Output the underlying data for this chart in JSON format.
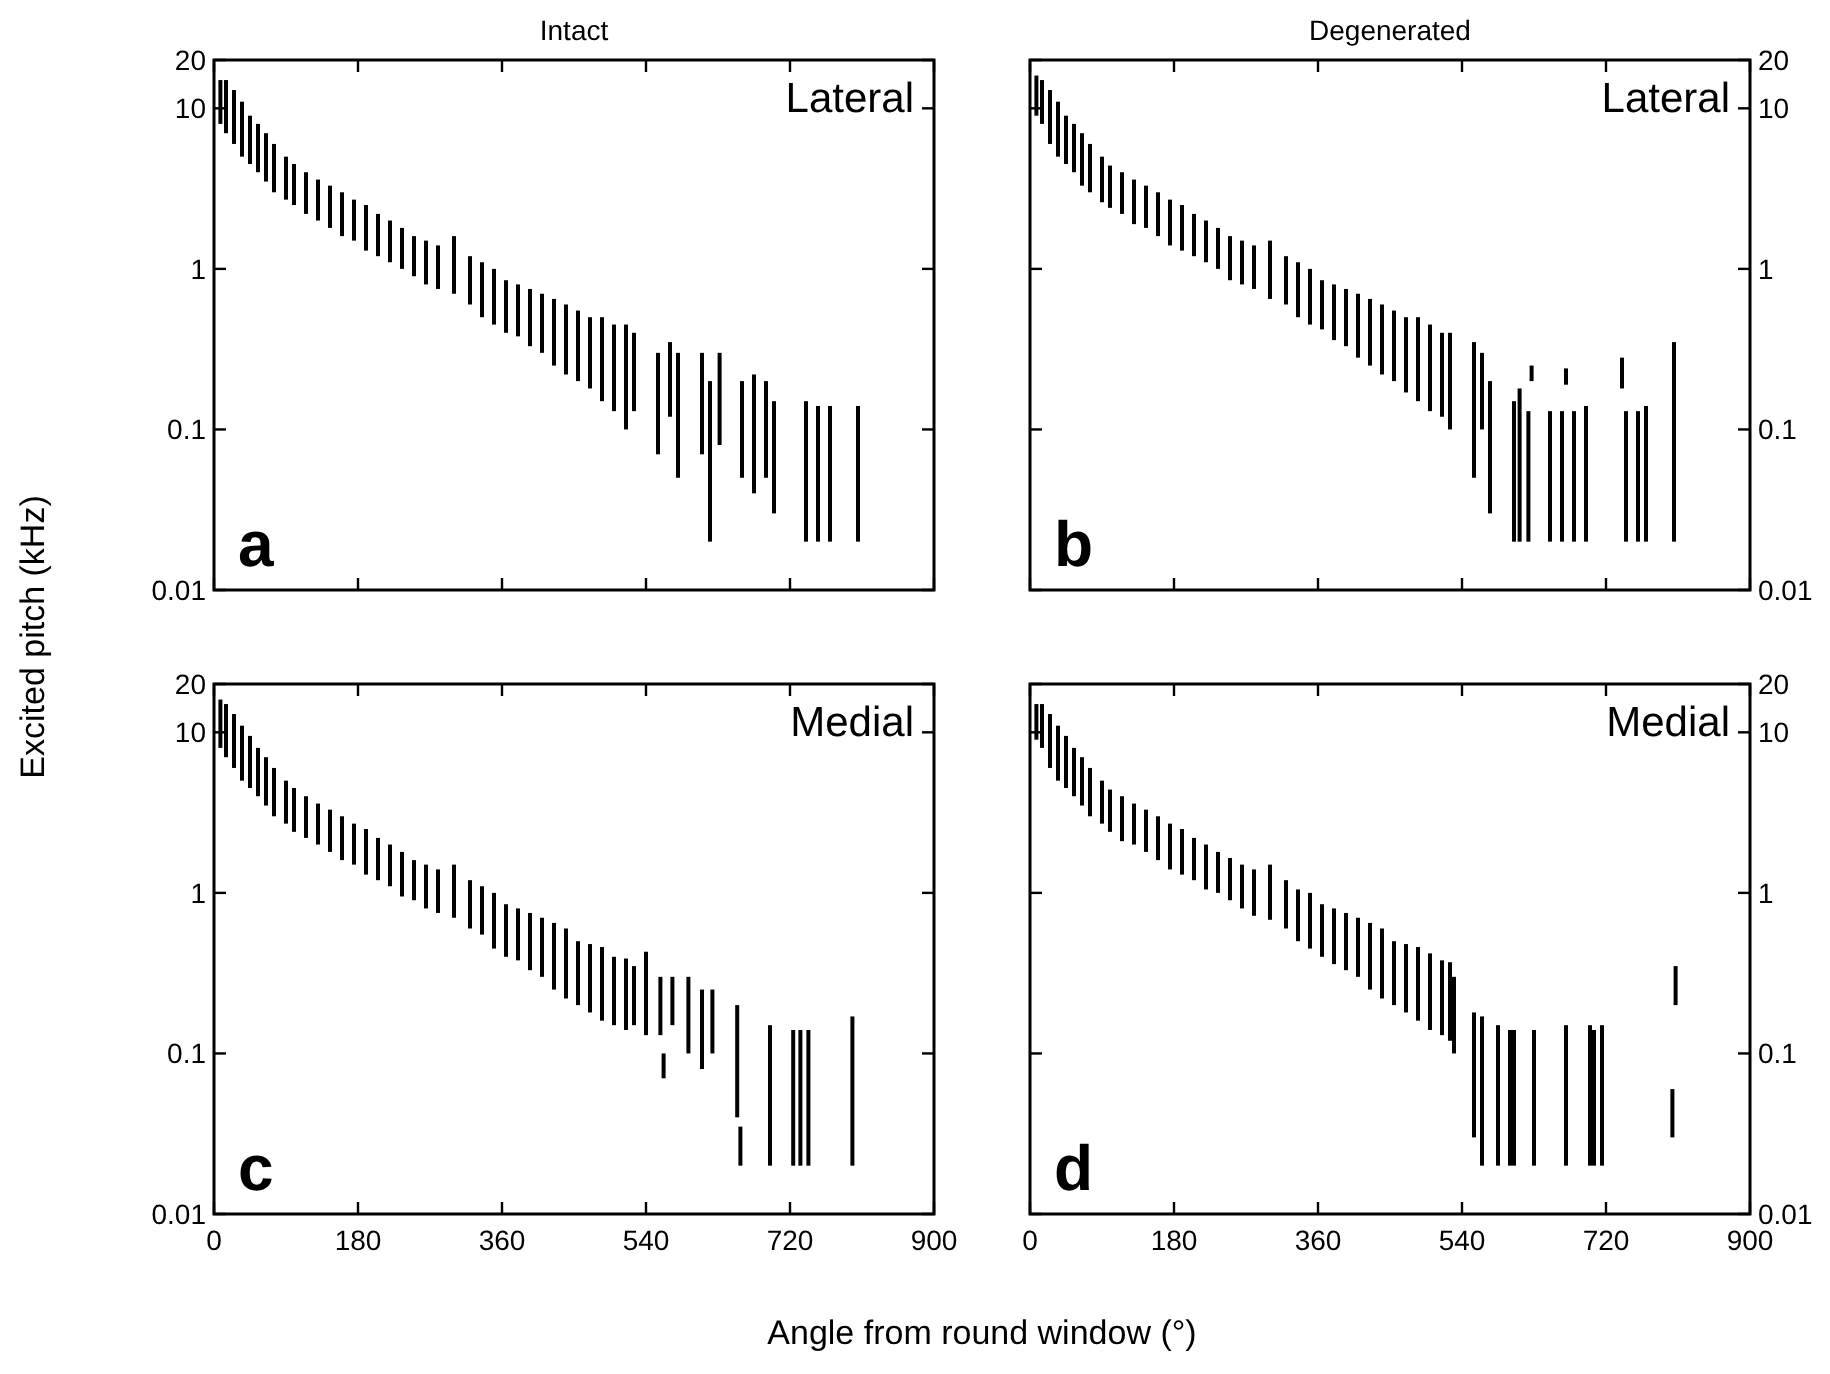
{
  "chart_data": [
    {
      "type": "bar",
      "title": "Intact",
      "ylabel": "Excited pitch (kHz)",
      "annotations": [
        "Lateral",
        "a"
      ],
      "log": "y",
      "tick_labels": "y",
      "xlim": [
        0,
        900
      ],
      "xticks": [
        0,
        180,
        360,
        540,
        720,
        900
      ],
      "ylim": [
        0.01,
        20
      ],
      "yticks": [
        0.01,
        0.1,
        1,
        10,
        20
      ],
      "x": [
        8,
        15,
        25,
        35,
        45,
        55,
        65,
        75,
        90,
        100,
        115,
        130,
        145,
        160,
        175,
        190,
        205,
        220,
        235,
        250,
        265,
        280,
        300,
        320,
        335,
        350,
        365,
        380,
        395,
        410,
        425,
        440,
        455,
        470,
        485,
        500,
        515,
        525,
        555,
        570,
        580,
        610,
        620,
        632,
        660,
        675,
        690,
        700,
        740,
        755,
        770,
        805
      ],
      "series": [
        {
          "color": "#000000",
          "base": [
            8,
            7,
            6,
            5,
            4.5,
            4,
            3.5,
            3,
            2.7,
            2.5,
            2.2,
            2,
            1.8,
            1.6,
            1.5,
            1.3,
            1.2,
            1.1,
            1,
            0.9,
            0.8,
            0.75,
            0.7,
            0.6,
            0.5,
            0.45,
            0.4,
            0.38,
            0.33,
            0.3,
            0.25,
            0.22,
            0.2,
            0.18,
            0.15,
            0.13,
            0.1,
            0.13,
            0.07,
            0.12,
            0.05,
            0.07,
            0.02,
            0.08,
            0.05,
            0.04,
            0.05,
            0.03,
            0.02,
            0.02,
            0.02,
            0.02
          ],
          "values": [
            7,
            8,
            7,
            6,
            4.5,
            4,
            3.5,
            3,
            2.3,
            2,
            1.8,
            1.6,
            1.5,
            1.4,
            1.2,
            1.2,
            1,
            0.9,
            0.8,
            0.7,
            0.7,
            0.65,
            0.9,
            0.6,
            0.6,
            0.55,
            0.45,
            0.42,
            0.42,
            0.4,
            0.4,
            0.38,
            0.35,
            0.32,
            0.35,
            0.32,
            0.35,
            0.27,
            0.23,
            0.23,
            0.25,
            0.23,
            0.18,
            0.22,
            0.15,
            0.18,
            0.15,
            0.12,
            0.13,
            0.12,
            0.12,
            0.12
          ]
        }
      ]
    },
    {
      "type": "bar",
      "title": "Degenerated",
      "annotations": [
        "Lateral",
        "b"
      ],
      "log": "y2",
      "tick_labels": "y",
      "xlim": [
        0,
        900
      ],
      "xticks": [
        0,
        180,
        360,
        540,
        720,
        900
      ],
      "y2lim": [
        0.01,
        20
      ],
      "y2ticks": [
        0.01,
        0.1,
        1,
        10,
        20
      ],
      "x": [
        8,
        15,
        25,
        35,
        45,
        55,
        65,
        75,
        90,
        100,
        115,
        130,
        145,
        160,
        175,
        190,
        205,
        220,
        235,
        250,
        265,
        280,
        300,
        320,
        335,
        350,
        365,
        380,
        395,
        410,
        425,
        440,
        455,
        470,
        485,
        500,
        515,
        525,
        555,
        565,
        575,
        605,
        612,
        623,
        627,
        650,
        665,
        670,
        680,
        695,
        740,
        745,
        760,
        770,
        805
      ],
      "series": [
        {
          "color": "#000000",
          "axis": "y2",
          "base": [
            9,
            8,
            6,
            5,
            4.5,
            4,
            3.3,
            3,
            2.6,
            2.4,
            2.2,
            1.9,
            1.8,
            1.6,
            1.4,
            1.3,
            1.2,
            1.1,
            1,
            0.85,
            0.8,
            0.75,
            0.65,
            0.6,
            0.5,
            0.45,
            0.42,
            0.36,
            0.33,
            0.28,
            0.25,
            0.22,
            0.2,
            0.17,
            0.15,
            0.13,
            0.12,
            0.1,
            0.05,
            0.1,
            0.03,
            0.02,
            0.02,
            0.02,
            0.2,
            0.02,
            0.02,
            0.19,
            0.02,
            0.02,
            0.18,
            0.02,
            0.02,
            0.02,
            0.02
          ],
          "values": [
            7,
            7,
            7,
            6,
            4.5,
            4,
            3.7,
            3,
            2.4,
            2,
            1.8,
            1.7,
            1.5,
            1.4,
            1.3,
            1.2,
            1,
            0.9,
            0.8,
            0.75,
            0.7,
            0.65,
            0.85,
            0.6,
            0.6,
            0.55,
            0.43,
            0.44,
            0.42,
            0.42,
            0.4,
            0.38,
            0.35,
            0.33,
            0.35,
            0.32,
            0.28,
            0.3,
            0.3,
            0.2,
            0.17,
            0.13,
            0.16,
            0.11,
            0.05,
            0.11,
            0.11,
            0.05,
            0.11,
            0.12,
            0.1,
            0.11,
            0.11,
            0.12,
            0.33
          ]
        }
      ]
    },
    {
      "type": "bar",
      "xlabel": "Angle from round window (°)",
      "annotations": [
        "Medial",
        "c"
      ],
      "log": "y",
      "xlim": [
        0,
        900
      ],
      "xticks": [
        0,
        180,
        360,
        540,
        720,
        900
      ],
      "ylim": [
        0.01,
        20
      ],
      "yticks": [
        0.01,
        0.1,
        1,
        10,
        20
      ],
      "x": [
        8,
        15,
        25,
        35,
        45,
        55,
        65,
        75,
        90,
        100,
        115,
        130,
        145,
        160,
        175,
        190,
        205,
        220,
        235,
        250,
        265,
        280,
        300,
        320,
        335,
        350,
        365,
        380,
        395,
        410,
        425,
        440,
        455,
        470,
        485,
        500,
        515,
        525,
        540,
        558,
        562,
        573,
        593,
        610,
        623,
        654,
        658,
        695,
        724,
        733,
        743,
        798
      ],
      "series": [
        {
          "color": "#000000",
          "base": [
            8,
            7,
            6,
            5,
            4.5,
            4,
            3.5,
            3,
            2.7,
            2.4,
            2.2,
            2,
            1.8,
            1.6,
            1.5,
            1.3,
            1.2,
            1.1,
            0.95,
            0.9,
            0.8,
            0.75,
            0.7,
            0.6,
            0.55,
            0.45,
            0.4,
            0.38,
            0.33,
            0.3,
            0.25,
            0.22,
            0.2,
            0.18,
            0.16,
            0.15,
            0.14,
            0.15,
            0.13,
            0.13,
            0.07,
            0.15,
            0.1,
            0.08,
            0.1,
            0.04,
            0.02,
            0.02,
            0.02,
            0.02,
            0.02,
            0.02
          ],
          "values": [
            8,
            8,
            7,
            6,
            5,
            4,
            3.5,
            3,
            2.3,
            2.1,
            1.8,
            1.6,
            1.5,
            1.4,
            1.2,
            1.2,
            1,
            0.9,
            0.85,
            0.7,
            0.7,
            0.65,
            0.8,
            0.6,
            0.55,
            0.55,
            0.45,
            0.42,
            0.42,
            0.4,
            0.4,
            0.38,
            0.3,
            0.3,
            0.3,
            0.25,
            0.25,
            0.2,
            0.3,
            0.17,
            0.03,
            0.15,
            0.2,
            0.17,
            0.15,
            0.16,
            0.015,
            0.13,
            0.12,
            0.12,
            0.12,
            0.15
          ]
        }
      ]
    },
    {
      "type": "bar",
      "annotations": [
        "Medial",
        "d"
      ],
      "log": "y2",
      "xlim": [
        0,
        900
      ],
      "xticks": [
        0,
        180,
        360,
        540,
        720,
        900
      ],
      "y2lim": [
        0.01,
        20
      ],
      "y2ticks": [
        0.01,
        0.1,
        1,
        10,
        20
      ],
      "x": [
        8,
        15,
        25,
        35,
        45,
        55,
        65,
        75,
        90,
        100,
        115,
        130,
        145,
        160,
        175,
        190,
        205,
        220,
        235,
        250,
        265,
        280,
        300,
        320,
        335,
        350,
        365,
        380,
        395,
        410,
        425,
        440,
        455,
        470,
        485,
        500,
        515,
        525,
        530,
        555,
        565,
        585,
        600,
        605,
        630,
        670,
        700,
        705,
        715,
        803,
        807
      ],
      "series": [
        {
          "color": "#000000",
          "axis": "y2",
          "base": [
            9,
            8,
            6,
            5,
            4.5,
            4,
            3.5,
            3,
            2.7,
            2.4,
            2.1,
            2,
            1.8,
            1.6,
            1.4,
            1.3,
            1.2,
            1.05,
            1,
            0.9,
            0.8,
            0.72,
            0.68,
            0.6,
            0.5,
            0.45,
            0.4,
            0.36,
            0.33,
            0.3,
            0.25,
            0.22,
            0.2,
            0.18,
            0.16,
            0.14,
            0.13,
            0.12,
            0.1,
            0.03,
            0.02,
            0.02,
            0.02,
            0.02,
            0.02,
            0.02,
            0.02,
            0.02,
            0.02,
            0.03,
            0.2
          ],
          "values": [
            6,
            7,
            7,
            6,
            5,
            4,
            3.5,
            3,
            2.3,
            2,
            1.9,
            1.6,
            1.5,
            1.4,
            1.3,
            1.2,
            1,
            0.95,
            0.8,
            0.75,
            0.7,
            0.68,
            0.82,
            0.6,
            0.55,
            0.55,
            0.45,
            0.44,
            0.42,
            0.4,
            0.4,
            0.38,
            0.3,
            0.3,
            0.3,
            0.28,
            0.25,
            0.25,
            0.2,
            0.15,
            0.15,
            0.13,
            0.12,
            0.12,
            0.12,
            0.13,
            0.13,
            0.12,
            0.13,
            0.03,
            0.15
          ]
        }
      ]
    }
  ]
}
